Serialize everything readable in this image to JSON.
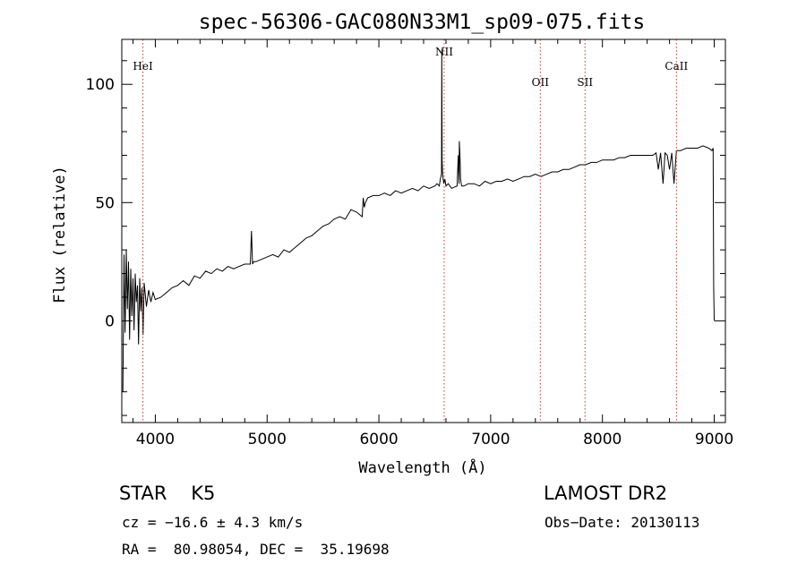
{
  "chart_data": {
    "type": "line",
    "title": "spec-56306-GAC080N33M1_sp09-075.fits",
    "xlabel": "Wavelength (Å)",
    "ylabel": "Flux (relative)",
    "xlim": [
      3700,
      9100
    ],
    "ylim": [
      -43,
      119
    ],
    "xticks": [
      4000,
      5000,
      6000,
      7000,
      8000,
      9000
    ],
    "yticks": [
      0,
      50,
      100
    ],
    "grid": false,
    "line_color": "#000000",
    "marker_color": "#c0392b",
    "series": [
      {
        "x": [
          3710,
          3720,
          3730,
          3740,
          3750,
          3760,
          3770,
          3780,
          3790,
          3800,
          3810,
          3820,
          3830,
          3840,
          3850,
          3860,
          3870,
          3880,
          3890,
          3900,
          3920,
          3940,
          3960,
          3980,
          4000,
          4050,
          4100,
          4150,
          4200,
          4250,
          4300,
          4350,
          4400,
          4450,
          4500,
          4550,
          4600,
          4650,
          4700,
          4750,
          4800,
          4850,
          4860,
          4870,
          4880,
          4900,
          4950,
          5000,
          5050,
          5100,
          5150,
          5200,
          5250,
          5300,
          5350,
          5400,
          5450,
          5500,
          5550,
          5600,
          5650,
          5700,
          5750,
          5800,
          5850,
          5860,
          5870,
          5880,
          5900,
          5950,
          6000,
          6050,
          6100,
          6150,
          6200,
          6250,
          6300,
          6350,
          6400,
          6450,
          6500,
          6520,
          6540,
          6550,
          6560,
          6563,
          6566,
          6570,
          6580,
          6590,
          6600,
          6620,
          6650,
          6700,
          6710,
          6717,
          6720,
          6725,
          6731,
          6740,
          6760,
          6800,
          6850,
          6900,
          6950,
          7000,
          7050,
          7100,
          7150,
          7200,
          7250,
          7300,
          7350,
          7400,
          7450,
          7500,
          7550,
          7600,
          7650,
          7700,
          7750,
          7800,
          7850,
          7900,
          7950,
          8000,
          8050,
          8100,
          8150,
          8200,
          8250,
          8300,
          8350,
          8400,
          8450,
          8480,
          8500,
          8520,
          8542,
          8560,
          8580,
          8600,
          8620,
          8640,
          8662,
          8680,
          8700,
          8750,
          8800,
          8850,
          8900,
          8950,
          8980,
          8990,
          8995,
          9000
        ],
        "values": [
          -30,
          28,
          -5,
          30,
          5,
          25,
          -8,
          22,
          2,
          18,
          -4,
          20,
          8,
          15,
          -10,
          18,
          4,
          14,
          -6,
          16,
          6,
          13,
          8,
          12,
          9,
          10,
          12,
          14,
          15,
          17,
          15,
          19,
          18,
          21,
          20,
          22,
          21,
          23,
          22,
          23,
          24,
          24,
          38,
          24,
          25,
          25,
          26,
          27,
          28,
          27,
          30,
          29,
          31,
          33,
          35,
          36,
          38,
          40,
          41,
          43,
          44,
          43,
          47,
          46,
          44,
          52,
          48,
          50,
          52,
          53,
          53,
          54,
          53,
          55,
          54,
          55,
          56,
          55,
          57,
          56,
          57,
          58,
          57,
          60,
          62,
          115,
          68,
          62,
          58,
          60,
          57,
          58,
          56,
          57,
          70,
          58,
          76,
          70,
          60,
          57,
          57,
          58,
          58,
          57,
          59,
          58,
          59,
          59,
          60,
          59,
          60,
          61,
          61,
          62,
          61,
          62,
          63,
          63,
          64,
          64,
          65,
          66,
          66,
          67,
          67,
          68,
          68,
          68,
          69,
          69,
          70,
          70,
          70,
          70,
          70,
          71,
          64,
          71,
          58,
          71,
          70,
          64,
          71,
          58,
          72,
          72,
          72,
          73,
          73,
          73,
          74,
          73,
          72,
          73,
          15,
          0
        ]
      }
    ],
    "annotations": [
      {
        "label": "HeI",
        "x": 3889
      },
      {
        "label": "NII",
        "x": 6584
      },
      {
        "label": "OII",
        "x": 7444
      },
      {
        "label": "SII",
        "x": 7844
      },
      {
        "label": "CaII",
        "x": 8662
      }
    ]
  },
  "info": {
    "object_type": "STAR",
    "subclass": "K5",
    "survey": "LAMOST DR2",
    "cz": "cz = −16.6 ± 4.3 km/s",
    "obs_date": "Obs−Date: 20130113",
    "coords": "RA =  80.98054, DEC =  35.19698"
  }
}
